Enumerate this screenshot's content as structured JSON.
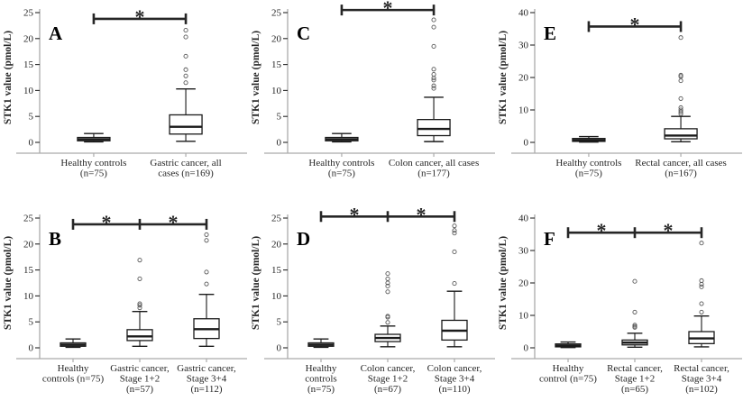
{
  "figure": {
    "background": "#ffffff",
    "axis_color": "#ababab",
    "box_color": "#1a1a1a",
    "outlier_color": "#595959",
    "text_color": "#262626",
    "significance_symbol": "*"
  },
  "chart_data": [
    {
      "type": "box",
      "panel_label": "A",
      "ylabel": "STK1 value (pmol/L)",
      "ylim": [
        0,
        25
      ],
      "yticks": [
        0,
        5,
        10,
        15,
        20,
        25
      ],
      "categories": [
        [
          "Healthy controls",
          "(n=75)"
        ],
        [
          "Gastric cancer, all",
          "cases (n=169)"
        ]
      ],
      "boxes": [
        {
          "whisker_low": 0.1,
          "q1": 0.3,
          "median": 0.6,
          "q3": 0.95,
          "whisker_high": 1.7,
          "outliers": []
        },
        {
          "whisker_low": 0.2,
          "q1": 1.6,
          "median": 3.0,
          "q3": 5.3,
          "whisker_high": 10.3,
          "outliers": [
            11.5,
            12.8,
            14.0,
            16.6,
            20.3,
            21.6
          ]
        }
      ],
      "significance": {
        "bar_y": 23.8,
        "tick_categories": [
          0,
          1
        ],
        "asterisk_segments": [
          [
            0,
            1
          ]
        ],
        "symbol": "*"
      }
    },
    {
      "type": "box",
      "panel_label": "C",
      "ylabel": "STK1 value (pmol/L)",
      "ylim": [
        0,
        25
      ],
      "yticks": [
        0,
        5,
        10,
        15,
        20,
        25
      ],
      "categories": [
        [
          "Healthy controls",
          "(n=75)"
        ],
        [
          "Colon cancer, all cases",
          "(n=177)"
        ]
      ],
      "boxes": [
        {
          "whisker_low": 0.1,
          "q1": 0.3,
          "median": 0.6,
          "q3": 0.95,
          "whisker_high": 1.7,
          "outliers": []
        },
        {
          "whisker_low": 0.15,
          "q1": 1.3,
          "median": 2.6,
          "q3": 4.4,
          "whisker_high": 8.7,
          "outliers": [
            10.4,
            10.9,
            12.0,
            12.4,
            13.1,
            14.1,
            18.5,
            22.2,
            23.6
          ]
        }
      ],
      "significance": {
        "bar_y": 25.5,
        "tick_categories": [
          0,
          1
        ],
        "asterisk_segments": [
          [
            0,
            1
          ]
        ],
        "symbol": "*"
      }
    },
    {
      "type": "box",
      "panel_label": "E",
      "ylabel": "STK1 value (pmol/L)",
      "ylim": [
        0,
        40
      ],
      "yticks": [
        0,
        10,
        20,
        30,
        40
      ],
      "categories": [
        [
          "Healthy controls",
          "(n=75)"
        ],
        [
          "Rectal cancer, all cases",
          "(n=167)"
        ]
      ],
      "boxes": [
        {
          "whisker_low": 0.1,
          "q1": 0.3,
          "median": 0.7,
          "q3": 1.2,
          "whisker_high": 1.8,
          "outliers": []
        },
        {
          "whisker_low": 0.2,
          "q1": 1.1,
          "median": 2.1,
          "q3": 4.2,
          "whisker_high": 8.0,
          "outliers": [
            8.8,
            9.4,
            10.0,
            10.7,
            13.5,
            19.0,
            20.3,
            20.7,
            32.3
          ]
        }
      ],
      "significance": {
        "bar_y": 35.7,
        "tick_categories": [
          0,
          1
        ],
        "asterisk_segments": [
          [
            0,
            1
          ]
        ],
        "symbol": "*"
      }
    },
    {
      "type": "box",
      "panel_label": "B",
      "ylabel": "STK1 value (pmol/L)",
      "ylim": [
        0,
        25
      ],
      "yticks": [
        0,
        5,
        10,
        15,
        20,
        25
      ],
      "categories": [
        [
          "Healthy",
          "controls (n=75)"
        ],
        [
          "Gastric cancer,",
          "Stage 1+2",
          "(n=57)"
        ],
        [
          "Gastric cancer,",
          "Stage 3+4",
          "(n=112)"
        ]
      ],
      "boxes": [
        {
          "whisker_low": 0.1,
          "q1": 0.3,
          "median": 0.6,
          "q3": 0.95,
          "whisker_high": 1.7,
          "outliers": []
        },
        {
          "whisker_low": 0.3,
          "q1": 1.4,
          "median": 2.2,
          "q3": 3.5,
          "whisker_high": 7.0,
          "outliers": [
            7.7,
            8.2,
            8.5,
            13.3,
            16.9
          ]
        },
        {
          "whisker_low": 0.3,
          "q1": 1.8,
          "median": 3.6,
          "q3": 5.6,
          "whisker_high": 10.3,
          "outliers": [
            12.3,
            14.6,
            20.7,
            21.8
          ]
        }
      ],
      "significance": {
        "bar_y": 23.8,
        "tick_categories": [
          0,
          1,
          2
        ],
        "asterisk_segments": [
          [
            0,
            1
          ],
          [
            1,
            2
          ]
        ],
        "symbol": "*"
      }
    },
    {
      "type": "box",
      "panel_label": "D",
      "ylabel": "STK1 value (pmol/L)",
      "ylim": [
        0,
        25
      ],
      "yticks": [
        0,
        5,
        10,
        15,
        20,
        25
      ],
      "categories": [
        [
          "Healthy",
          "controls",
          "(n=75)"
        ],
        [
          "Colon cancer,",
          "Stage 1+2",
          "(n=67)"
        ],
        [
          "Colon cancer,",
          "Stage 3+4",
          "(n=110)"
        ]
      ],
      "boxes": [
        {
          "whisker_low": 0.1,
          "q1": 0.3,
          "median": 0.6,
          "q3": 0.95,
          "whisker_high": 1.7,
          "outliers": []
        },
        {
          "whisker_low": 0.2,
          "q1": 1.2,
          "median": 1.9,
          "q3": 2.6,
          "whisker_high": 4.2,
          "outliers": [
            4.9,
            5.9,
            6.1,
            10.8,
            11.9,
            12.5,
            13.3,
            14.3
          ]
        },
        {
          "whisker_low": 0.2,
          "q1": 1.5,
          "median": 3.3,
          "q3": 5.3,
          "whisker_high": 10.9,
          "outliers": [
            12.4,
            18.5,
            22.1,
            22.6,
            23.5
          ]
        }
      ],
      "significance": {
        "bar_y": 25.3,
        "tick_categories": [
          0,
          1,
          2
        ],
        "asterisk_segments": [
          [
            0,
            1
          ],
          [
            1,
            2
          ]
        ],
        "symbol": "*"
      }
    },
    {
      "type": "box",
      "panel_label": "F",
      "ylabel": "STK1 value (pmol/L)",
      "ylim": [
        0,
        40
      ],
      "yticks": [
        0,
        10,
        20,
        30,
        40
      ],
      "categories": [
        [
          "Healthy",
          "control (n=75)"
        ],
        [
          "Rectal cancer,",
          "Stage 1+2",
          "(n=65)"
        ],
        [
          "Rectal cancer,",
          "Stage 3+4",
          "(n=102)"
        ]
      ],
      "boxes": [
        {
          "whisker_low": 0.1,
          "q1": 0.3,
          "median": 0.7,
          "q3": 1.2,
          "whisker_high": 1.8,
          "outliers": []
        },
        {
          "whisker_low": 0.2,
          "q1": 0.9,
          "median": 1.6,
          "q3": 2.4,
          "whisker_high": 4.5,
          "outliers": [
            6.3,
            6.6,
            7.0,
            11.0,
            20.5
          ]
        },
        {
          "whisker_low": 0.3,
          "q1": 1.3,
          "median": 2.9,
          "q3": 5.0,
          "whisker_high": 9.8,
          "outliers": [
            11.0,
            13.6,
            18.8,
            19.6,
            20.7,
            32.3
          ]
        }
      ],
      "significance": {
        "bar_y": 35.5,
        "tick_categories": [
          0,
          1,
          2
        ],
        "asterisk_segments": [
          [
            0,
            1
          ],
          [
            1,
            2
          ]
        ],
        "symbol": "*"
      }
    }
  ]
}
